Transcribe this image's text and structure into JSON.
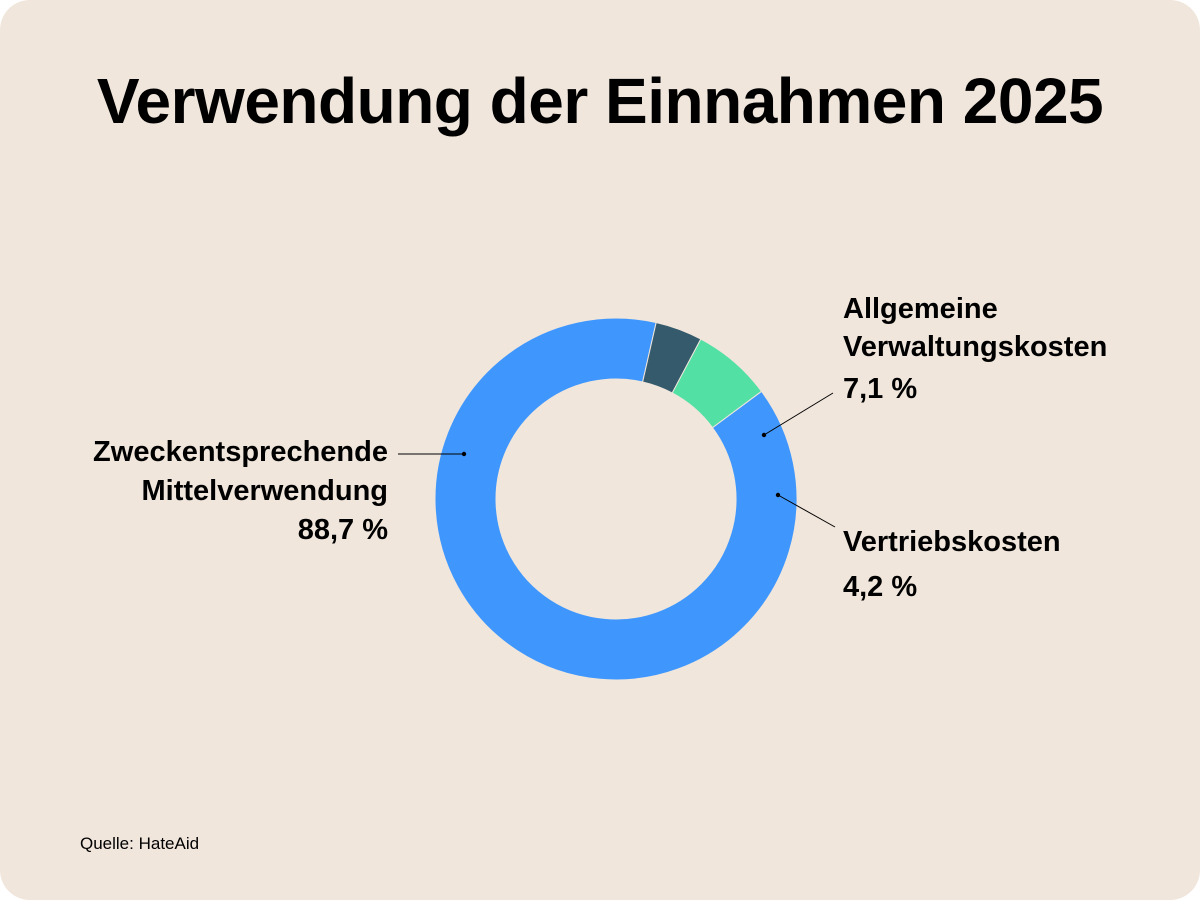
{
  "chart_data": {
    "type": "pie",
    "title": "Verwendung der Einnahmen 2025",
    "source": "Quelle: HateAid",
    "slices": [
      {
        "name_lines": [
          "Zweckentsprechende",
          "Mittelverwendung"
        ],
        "value": 88.7,
        "value_label": "88,7 %",
        "color": "#3f97fd"
      },
      {
        "name_lines": [
          "Vertriebskosten"
        ],
        "value": 4.2,
        "value_label": "4,2 %",
        "color": "#355a6c"
      },
      {
        "name_lines": [
          "Allgemeine",
          "Verwaltungskosten"
        ],
        "value": 7.1,
        "value_label": "7,1 %",
        "color": "#52e0a5"
      }
    ],
    "legend": "none",
    "grid": false
  }
}
